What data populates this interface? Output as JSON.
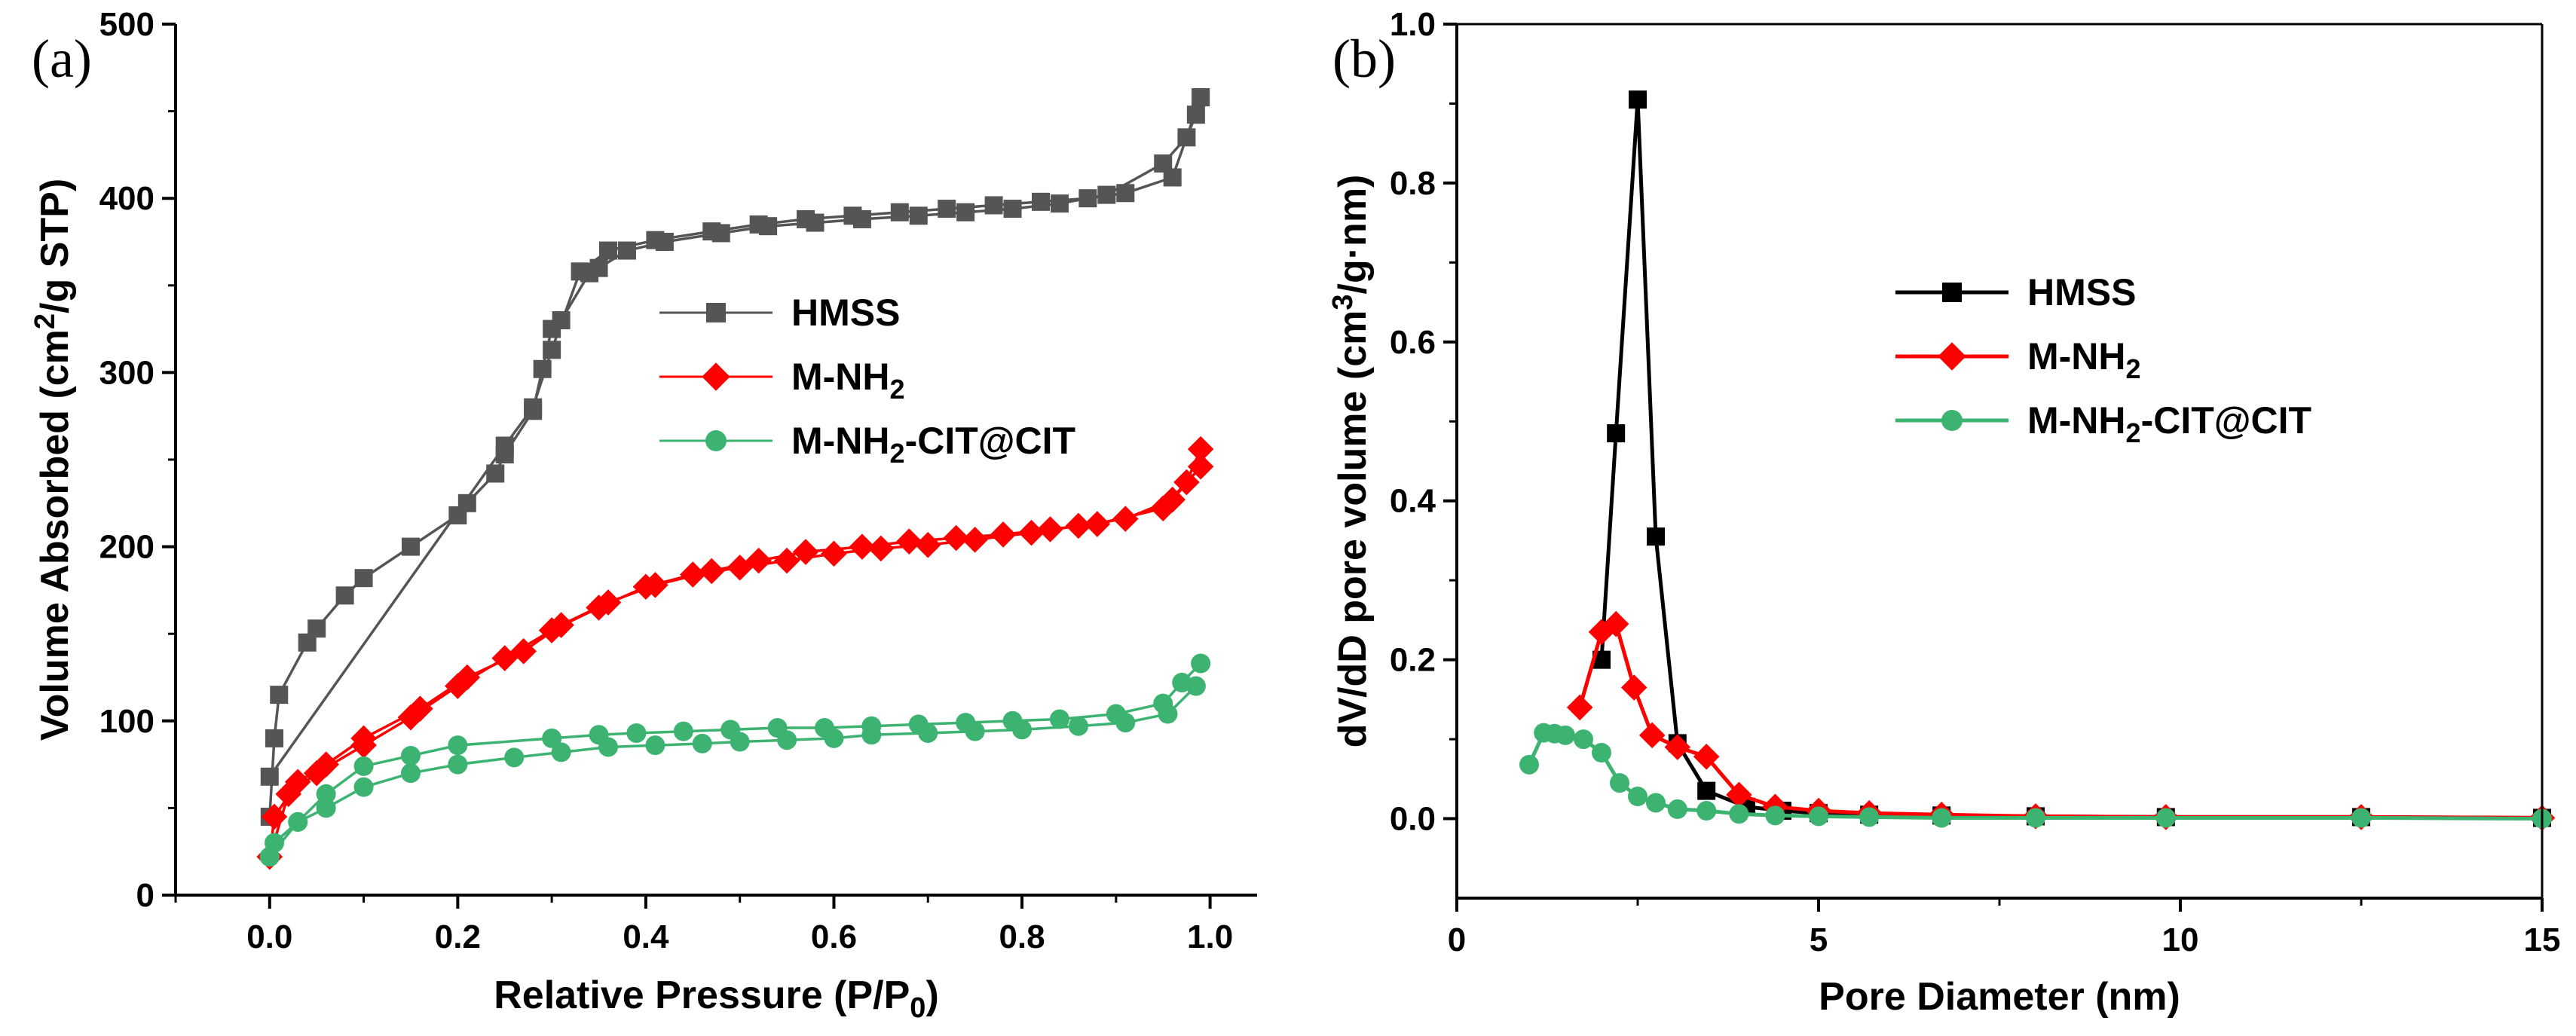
{
  "chart_data": [
    {
      "panel": "(a)",
      "type": "line",
      "xlabel": "Relative Pressure (P/P",
      "xlabel_sub": "0",
      "xlabel_end": ")",
      "ylabel": "Volume Absorbed (cm",
      "ylabel_sup": "2",
      "ylabel_end": "/g STP)",
      "xlim": [
        -0.1,
        1.05
      ],
      "ylim": [
        0,
        500
      ],
      "xticks": [
        0.0,
        0.2,
        0.4,
        0.6,
        0.8,
        1.0
      ],
      "xtick_labels": [
        "0.0",
        "0.2",
        "0.4",
        "0.6",
        "0.8",
        "1.0"
      ],
      "yticks": [
        0,
        100,
        200,
        300,
        400,
        500
      ],
      "ytick_labels": [
        "0",
        "100",
        "200",
        "300",
        "400",
        "500"
      ],
      "legend_position": "center-right",
      "series": [
        {
          "name": "HMSS",
          "name_sub": "",
          "name_end": "",
          "color": "#555555",
          "marker": "square",
          "x": [
            0.0,
            0.005,
            0.01,
            0.04,
            0.05,
            0.08,
            0.1,
            0.15,
            0.2,
            0.21,
            0.24,
            0.25,
            0.28,
            0.29,
            0.3,
            0.31,
            0.34,
            0.35,
            0.38,
            0.42,
            0.48,
            0.53,
            0.58,
            0.63,
            0.69,
            0.74,
            0.79,
            0.84,
            0.89,
            0.95,
            0.975,
            0.985,
            0.99
          ],
          "y": [
            45,
            90,
            115,
            145,
            153,
            172,
            182,
            200,
            218,
            225,
            242,
            253,
            278,
            302,
            325,
            330,
            357,
            360,
            370,
            375,
            380,
            384,
            386,
            388,
            390,
            392,
            394,
            397,
            402,
            420,
            435,
            448,
            458
          ],
          "x2": [
            0.99,
            0.96,
            0.91,
            0.87,
            0.82,
            0.77,
            0.72,
            0.67,
            0.62,
            0.57,
            0.52,
            0.47,
            0.41,
            0.36,
            0.33,
            0.3,
            0.28,
            0.25,
            0.0
          ],
          "y2": [
            458,
            412,
            403,
            400,
            398,
            396,
            394,
            392,
            390,
            388,
            385,
            381,
            376,
            370,
            358,
            313,
            280,
            258,
            68
          ]
        },
        {
          "name": "M-NH",
          "name_sub": "2",
          "name_end": "",
          "color": "#ff0000",
          "marker": "diamond",
          "x": [
            0.0,
            0.005,
            0.03,
            0.06,
            0.1,
            0.16,
            0.21,
            0.27,
            0.31,
            0.36,
            0.41,
            0.47,
            0.52,
            0.57,
            0.63,
            0.68,
            0.73,
            0.78,
            0.83,
            0.88,
            0.95,
            0.975,
            0.99
          ],
          "y": [
            22,
            45,
            65,
            75,
            90,
            107,
            125,
            140,
            155,
            168,
            178,
            186,
            192,
            197,
            200,
            203,
            205,
            207,
            210,
            213,
            222,
            237,
            256
          ],
          "x2": [
            0.99,
            0.96,
            0.91,
            0.86,
            0.81,
            0.75,
            0.7,
            0.65,
            0.6,
            0.55,
            0.5,
            0.45,
            0.4,
            0.35,
            0.3,
            0.25,
            0.2,
            0.15,
            0.1,
            0.05,
            0.02,
            0.0
          ],
          "y2": [
            246,
            227,
            216,
            212,
            208,
            204,
            201,
            199,
            196,
            192,
            188,
            184,
            177,
            165,
            152,
            136,
            120,
            102,
            86,
            70,
            58,
            22
          ]
        },
        {
          "name": "M-NH",
          "name_sub": "2",
          "name_end": "-CIT@CIT",
          "color": "#3cb371",
          "marker": "circle",
          "x": [
            0.0,
            0.005,
            0.03,
            0.06,
            0.1,
            0.15,
            0.2,
            0.3,
            0.35,
            0.39,
            0.44,
            0.49,
            0.54,
            0.59,
            0.64,
            0.69,
            0.74,
            0.79,
            0.84,
            0.9,
            0.95,
            0.97,
            0.99
          ],
          "y": [
            22,
            30,
            42,
            58,
            74,
            80,
            86,
            90,
            92,
            93,
            94,
            95,
            96,
            96,
            97,
            98,
            99,
            100,
            101,
            104,
            110,
            122,
            133
          ],
          "x2": [
            0.985,
            0.955,
            0.91,
            0.86,
            0.8,
            0.75,
            0.7,
            0.64,
            0.6,
            0.55,
            0.5,
            0.46,
            0.41,
            0.36,
            0.31,
            0.26,
            0.2,
            0.15,
            0.1,
            0.06,
            0.03,
            0.0
          ],
          "y2": [
            120,
            104,
            99,
            97,
            95,
            94,
            93,
            92,
            90,
            89,
            88,
            87,
            86,
            85,
            82,
            79,
            75,
            70,
            62,
            50,
            42,
            22
          ]
        }
      ]
    },
    {
      "panel": "(b)",
      "type": "line",
      "xlabel": "Pore Diameter (nm)",
      "ylabel": "dV/dD pore volume (cm",
      "ylabel_sup": "3",
      "ylabel_end": "/g·nm)",
      "xlim": [
        0,
        15
      ],
      "ylim": [
        -0.1,
        1.0
      ],
      "xticks": [
        0,
        5,
        10,
        15
      ],
      "xtick_labels": [
        "0",
        "5",
        "10",
        "15"
      ],
      "yticks": [
        0.0,
        0.2,
        0.4,
        0.6,
        0.8,
        1.0
      ],
      "ytick_labels": [
        "0.0",
        "0.2",
        "0.4",
        "0.6",
        "0.8",
        "1.0"
      ],
      "legend_position": "center-right",
      "series": [
        {
          "name": "HMSS",
          "name_sub": "",
          "name_end": "",
          "color": "#000000",
          "marker": "square",
          "x": [
            2.0,
            2.2,
            2.5,
            2.75,
            3.05,
            3.45,
            4.0,
            4.5,
            5.0,
            5.7,
            6.7,
            8.0,
            9.8,
            12.5,
            15.0
          ],
          "y": [
            0.2,
            0.485,
            0.905,
            0.355,
            0.095,
            0.035,
            0.015,
            0.01,
            0.007,
            0.005,
            0.004,
            0.003,
            0.002,
            0.002,
            0.001
          ]
        },
        {
          "name": "M-NH",
          "name_sub": "2",
          "name_end": "",
          "color": "#ff0000",
          "marker": "diamond",
          "x": [
            1.7,
            2.0,
            2.2,
            2.45,
            2.7,
            3.05,
            3.45,
            3.9,
            4.4,
            5.0,
            5.7,
            6.7,
            8.0,
            9.8,
            12.5,
            15.0
          ],
          "y": [
            0.14,
            0.235,
            0.245,
            0.165,
            0.105,
            0.09,
            0.078,
            0.03,
            0.015,
            0.01,
            0.007,
            0.005,
            0.003,
            0.002,
            0.002,
            0.001
          ]
        },
        {
          "name": "M-NH",
          "name_sub": "2",
          "name_end": "-CIT@CIT",
          "color": "#3cb371",
          "marker": "circle",
          "x": [
            1.0,
            1.2,
            1.35,
            1.5,
            1.75,
            2.0,
            2.25,
            2.5,
            2.75,
            3.05,
            3.45,
            3.9,
            4.4,
            5.0,
            5.7,
            6.7,
            8.0,
            9.8,
            12.5,
            15.0
          ],
          "y": [
            0.068,
            0.108,
            0.107,
            0.105,
            0.1,
            0.083,
            0.045,
            0.028,
            0.02,
            0.012,
            0.01,
            0.006,
            0.004,
            0.003,
            0.002,
            0.001,
            0.001,
            0.001,
            0.001,
            0.0
          ]
        }
      ]
    }
  ]
}
